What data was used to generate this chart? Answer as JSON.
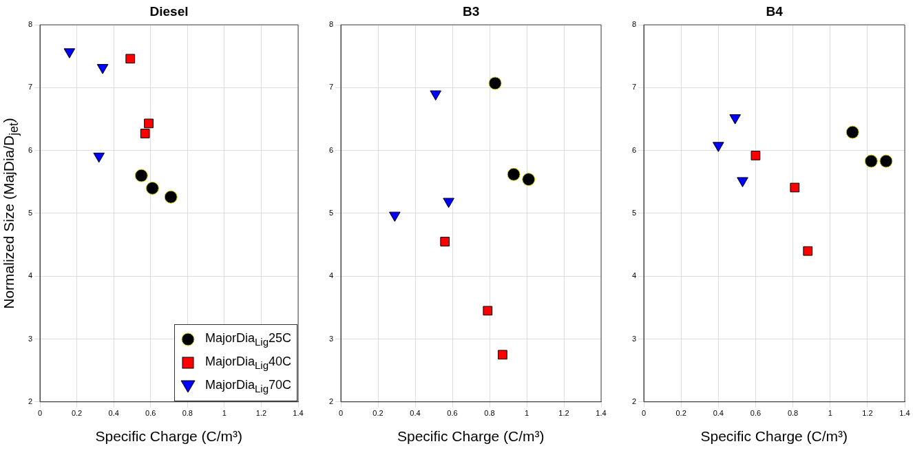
{
  "chart_data": [
    {
      "type": "scatter",
      "title": "Diesel",
      "xlabel": "Specific Charge (C/m³)",
      "ylabel": "Normalized Size (MajDia/D$_{jet}$)",
      "xlim": [
        0,
        1.4
      ],
      "xticks": [
        0,
        0.2,
        0.4,
        0.6,
        0.8,
        1,
        1.2,
        1.4
      ],
      "ylim": [
        2,
        8
      ],
      "yticks": [
        2,
        3,
        4,
        5,
        6,
        7,
        8
      ],
      "grid": true,
      "legend": "bottom right",
      "series": [
        {
          "name": "MajorDia$_{Lig}$25C",
          "color": "#000000",
          "marker": "circle",
          "x": [
            0.55,
            0.61,
            0.71
          ],
          "values": [
            5.6,
            5.4,
            5.26
          ]
        },
        {
          "name": "MajorDia$_{Lig}$40C",
          "color": "#ff0000",
          "marker": "square",
          "x": [
            0.49,
            0.59,
            0.57
          ],
          "values": [
            7.46,
            6.43,
            6.27
          ]
        },
        {
          "name": "MajorDia$_{Lig}$70C",
          "color": "#0000ff",
          "marker": "triangle",
          "x": [
            0.16,
            0.34,
            0.32
          ],
          "values": [
            7.57,
            7.32,
            5.91
          ]
        }
      ]
    },
    {
      "type": "scatter",
      "title": "B3",
      "xlabel": "Specific Charge (C/m³)",
      "xlim": [
        0,
        1.4
      ],
      "xticks": [
        0,
        0.2,
        0.4,
        0.6,
        0.8,
        1,
        1.2,
        1.4
      ],
      "ylim": [
        2,
        8
      ],
      "yticks": [
        2,
        3,
        4,
        5,
        6,
        7,
        8
      ],
      "grid": true,
      "series": [
        {
          "color": "#000000",
          "marker": "circle",
          "x": [
            0.83,
            0.93,
            1.01
          ],
          "values": [
            7.07,
            5.62,
            5.54
          ]
        },
        {
          "color": "#ff0000",
          "marker": "square",
          "x": [
            0.56,
            0.79,
            0.87
          ],
          "values": [
            4.55,
            3.45,
            2.75
          ]
        },
        {
          "color": "#0000ff",
          "marker": "triangle",
          "x": [
            0.51,
            0.29,
            0.58
          ],
          "values": [
            6.9,
            4.97,
            5.19
          ]
        }
      ]
    },
    {
      "type": "scatter",
      "title": "B4",
      "xlabel": "Specific Charge (C/m³)",
      "xlim": [
        0,
        1.4
      ],
      "xticks": [
        0,
        0.2,
        0.4,
        0.6,
        0.8,
        1,
        1.2,
        1.4
      ],
      "ylim": [
        2,
        8
      ],
      "yticks": [
        2,
        3,
        4,
        5,
        6,
        7,
        8
      ],
      "grid": true,
      "series": [
        {
          "color": "#000000",
          "marker": "circle",
          "x": [
            1.12,
            1.22,
            1.3
          ],
          "values": [
            6.29,
            5.83,
            5.83
          ]
        },
        {
          "color": "#ff0000",
          "marker": "square",
          "x": [
            0.6,
            0.81,
            0.88
          ],
          "values": [
            5.92,
            5.41,
            4.4
          ]
        },
        {
          "color": "#0000ff",
          "marker": "triangle",
          "x": [
            0.49,
            0.4,
            0.53
          ],
          "values": [
            6.52,
            6.08,
            5.52
          ]
        }
      ]
    }
  ]
}
